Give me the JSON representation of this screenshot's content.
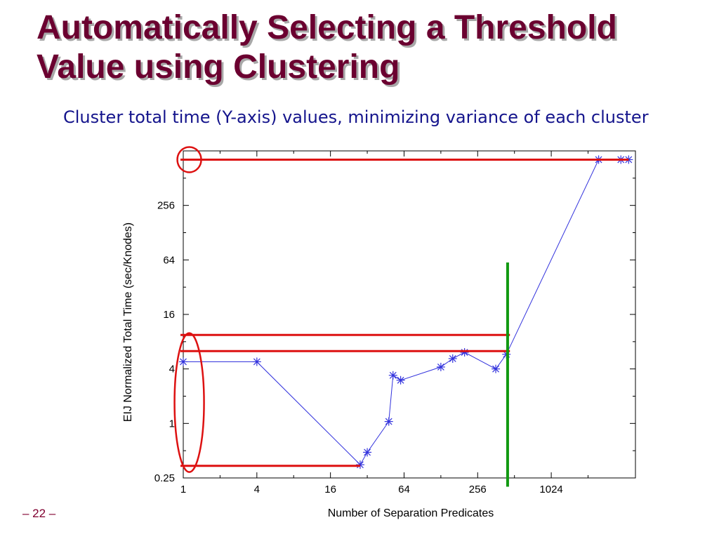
{
  "slide": {
    "title": "Automatically Selecting a Threshold Value using Clustering",
    "subtitle": "Cluster total time (Y-axis) values, minimizing variance of each cluster",
    "page_number": "– 22 –"
  },
  "chart_data": {
    "type": "scatter",
    "title": "",
    "xlabel": "Number of Separation Predicates",
    "ylabel": "EIJ Normalized Total Time (sec/Knodes)",
    "xscale": "log2",
    "yscale": "log2",
    "xlim": [
      1,
      5000
    ],
    "ylim": [
      0.25,
      1024
    ],
    "x_ticks": [
      1,
      4,
      16,
      64,
      256,
      1024
    ],
    "x_tick_labels": [
      "1",
      "4",
      "16",
      "64",
      "256",
      "1024"
    ],
    "y_ticks": [
      0.25,
      1,
      4,
      16,
      64,
      256
    ],
    "y_tick_labels": [
      "0.25",
      "1",
      "4",
      "16",
      "64",
      "256"
    ],
    "grid": false,
    "series": [
      {
        "color": "#3333dd",
        "marker": "asterisk",
        "line": true,
        "x": [
          1,
          4,
          28,
          32,
          48,
          52,
          60,
          128,
          160,
          200,
          360,
          440,
          2500,
          3800,
          4400
        ],
        "y": [
          4.8,
          4.8,
          0.35,
          0.48,
          1.05,
          3.4,
          3.0,
          4.2,
          5.2,
          6.1,
          4.0,
          5.8,
          820,
          820,
          820
        ]
      }
    ],
    "annotations": {
      "red_lines": [
        {
          "color": "#dd1111",
          "x": [
            1,
            4400
          ],
          "y": [
            820,
            820
          ]
        },
        {
          "color": "#dd1111",
          "x": [
            1,
            470
          ],
          "y": [
            9.5,
            9.5
          ]
        },
        {
          "color": "#dd1111",
          "x": [
            1,
            470
          ],
          "y": [
            6.3,
            6.3
          ]
        },
        {
          "color": "#dd1111",
          "x": [
            1,
            28
          ],
          "y": [
            0.34,
            0.34
          ]
        }
      ],
      "red_ellipses": [
        {
          "color": "#dd1111",
          "cx": 1.12,
          "cy": 820
        },
        {
          "color": "#dd1111",
          "cx": 1.12,
          "cy": 1.7
        }
      ],
      "green_line": {
        "color": "#119911",
        "x": 450,
        "y": [
          0.2,
          60
        ]
      }
    }
  }
}
